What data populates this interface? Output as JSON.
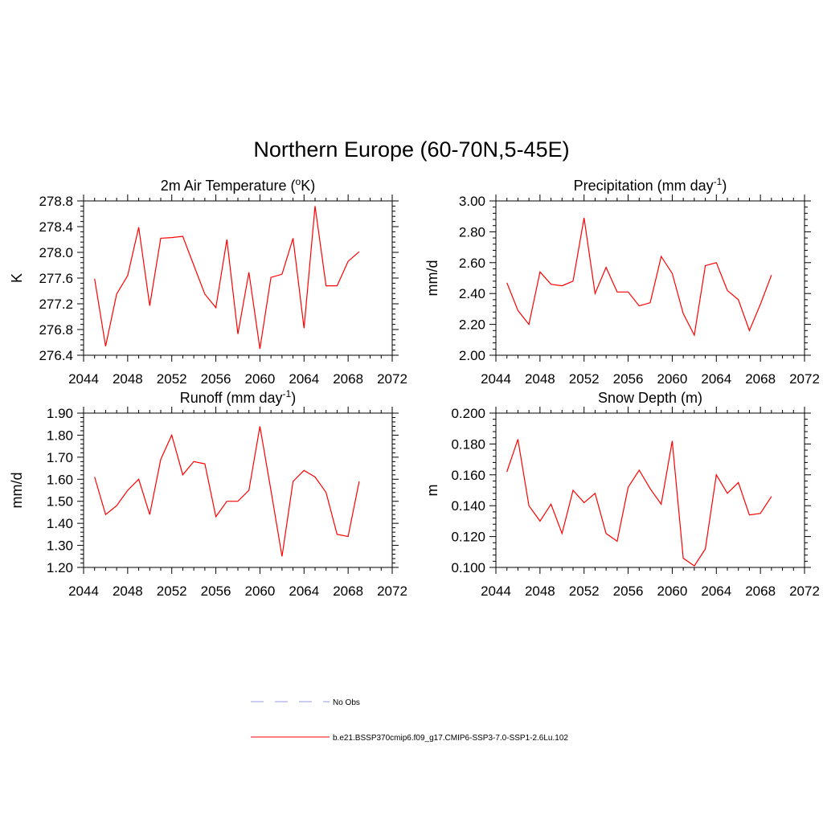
{
  "figure": {
    "title": "Northern Europe (60-70N,5-45E)"
  },
  "legend": {
    "entries": [
      {
        "label": "No Obs",
        "color": "#9a9ae0",
        "dash": "dashed"
      },
      {
        "label": "b.e21.BSSP370cmip6.f09_g17.CMIP6-SSP3-7.0-SSP1-2.6Lu.102",
        "color": "#ff0000",
        "dash": "solid"
      }
    ]
  },
  "chart_data": [
    {
      "type": "line",
      "title": "2m Air Temperature (",
      "title_sup": "o",
      "title_tail": "K)",
      "ylabel": "K",
      "xlim": [
        2044,
        2072
      ],
      "xticks": [
        2044,
        2048,
        2052,
        2056,
        2060,
        2064,
        2068,
        2072
      ],
      "xtick_labels": [
        "2044",
        "2048",
        "2052",
        "2056",
        "2060",
        "2064",
        "2068",
        "2072"
      ],
      "ylim": [
        276.4,
        278.8
      ],
      "yticks": [
        276.4,
        276.8,
        277.2,
        277.6,
        278.0,
        278.4,
        278.8
      ],
      "ytick_labels": [
        "276.4",
        "276.8",
        "277.2",
        "277.6",
        "278.0",
        "278.4",
        "278.8"
      ],
      "series": [
        {
          "color": "#ff0000",
          "x": [
            2045,
            2046,
            2047,
            2048,
            2049,
            2050,
            2051,
            2052,
            2053,
            2054,
            2055,
            2056,
            2057,
            2058,
            2059,
            2060,
            2061,
            2062,
            2063,
            2064,
            2065,
            2066,
            2067,
            2068,
            2069
          ],
          "values": [
            277.59,
            276.54,
            277.35,
            277.64,
            278.39,
            277.17,
            278.22,
            278.23,
            278.25,
            277.8,
            277.35,
            277.14,
            278.2,
            276.73,
            277.69,
            276.5,
            277.61,
            277.66,
            278.22,
            276.82,
            278.72,
            277.48,
            277.48,
            277.86,
            278.01
          ]
        }
      ]
    },
    {
      "type": "line",
      "title": "Precipitation (mm day",
      "title_sup": "-1",
      "title_tail": ")",
      "ylabel": "mm/d",
      "xlim": [
        2044,
        2072
      ],
      "xticks": [
        2044,
        2048,
        2052,
        2056,
        2060,
        2064,
        2068,
        2072
      ],
      "xtick_labels": [
        "2044",
        "2048",
        "2052",
        "2056",
        "2060",
        "2064",
        "2068",
        "2072"
      ],
      "ylim": [
        2.0,
        3.0
      ],
      "yticks": [
        2.0,
        2.2,
        2.4,
        2.6,
        2.8,
        3.0
      ],
      "ytick_labels": [
        "2.00",
        "2.20",
        "2.40",
        "2.60",
        "2.80",
        "3.00"
      ],
      "series": [
        {
          "color": "#ff0000",
          "x": [
            2045,
            2046,
            2047,
            2048,
            2049,
            2050,
            2051,
            2052,
            2053,
            2054,
            2055,
            2056,
            2057,
            2058,
            2059,
            2060,
            2061,
            2062,
            2063,
            2064,
            2065,
            2066,
            2067,
            2068,
            2069
          ],
          "values": [
            2.47,
            2.29,
            2.2,
            2.54,
            2.46,
            2.45,
            2.48,
            2.89,
            2.4,
            2.57,
            2.41,
            2.41,
            2.32,
            2.34,
            2.64,
            2.53,
            2.27,
            2.13,
            2.58,
            2.6,
            2.42,
            2.36,
            2.16,
            2.33,
            2.52
          ]
        }
      ]
    },
    {
      "type": "line",
      "title": "Runoff (mm day",
      "title_sup": "-1",
      "title_tail": ")",
      "ylabel": "mm/d",
      "xlim": [
        2044,
        2072
      ],
      "xticks": [
        2044,
        2048,
        2052,
        2056,
        2060,
        2064,
        2068,
        2072
      ],
      "xtick_labels": [
        "2044",
        "2048",
        "2052",
        "2056",
        "2060",
        "2064",
        "2068",
        "2072"
      ],
      "ylim": [
        1.2,
        1.9
      ],
      "yticks": [
        1.2,
        1.3,
        1.4,
        1.5,
        1.6,
        1.7,
        1.8,
        1.9
      ],
      "ytick_labels": [
        "1.20",
        "1.30",
        "1.40",
        "1.50",
        "1.60",
        "1.70",
        "1.80",
        "1.90"
      ],
      "series": [
        {
          "color": "#ff0000",
          "x": [
            2045,
            2046,
            2047,
            2048,
            2049,
            2050,
            2051,
            2052,
            2053,
            2054,
            2055,
            2056,
            2057,
            2058,
            2059,
            2060,
            2061,
            2062,
            2063,
            2064,
            2065,
            2066,
            2067,
            2068,
            2069
          ],
          "values": [
            1.61,
            1.44,
            1.48,
            1.55,
            1.6,
            1.44,
            1.69,
            1.8,
            1.62,
            1.68,
            1.67,
            1.43,
            1.5,
            1.5,
            1.55,
            1.84,
            1.55,
            1.25,
            1.59,
            1.64,
            1.61,
            1.54,
            1.35,
            1.34,
            1.59
          ]
        }
      ]
    },
    {
      "type": "line",
      "title": "Snow Depth (m)",
      "title_sup": "",
      "title_tail": "",
      "ylabel": "m",
      "xlim": [
        2044,
        2072
      ],
      "xticks": [
        2044,
        2048,
        2052,
        2056,
        2060,
        2064,
        2068,
        2072
      ],
      "xtick_labels": [
        "2044",
        "2048",
        "2052",
        "2056",
        "2060",
        "2064",
        "2068",
        "2072"
      ],
      "ylim": [
        0.1,
        0.2
      ],
      "yticks": [
        0.1,
        0.12,
        0.14,
        0.16,
        0.18,
        0.2
      ],
      "ytick_labels": [
        "0.100",
        "0.120",
        "0.140",
        "0.160",
        "0.180",
        "0.200"
      ],
      "series": [
        {
          "color": "#ff0000",
          "x": [
            2045,
            2046,
            2047,
            2048,
            2049,
            2050,
            2051,
            2052,
            2053,
            2054,
            2055,
            2056,
            2057,
            2058,
            2059,
            2060,
            2061,
            2062,
            2063,
            2064,
            2065,
            2066,
            2067,
            2068,
            2069
          ],
          "values": [
            0.162,
            0.183,
            0.14,
            0.13,
            0.141,
            0.122,
            0.15,
            0.142,
            0.148,
            0.122,
            0.117,
            0.152,
            0.163,
            0.151,
            0.141,
            0.182,
            0.106,
            0.101,
            0.112,
            0.16,
            0.148,
            0.155,
            0.134,
            0.135,
            0.146
          ]
        }
      ]
    }
  ]
}
